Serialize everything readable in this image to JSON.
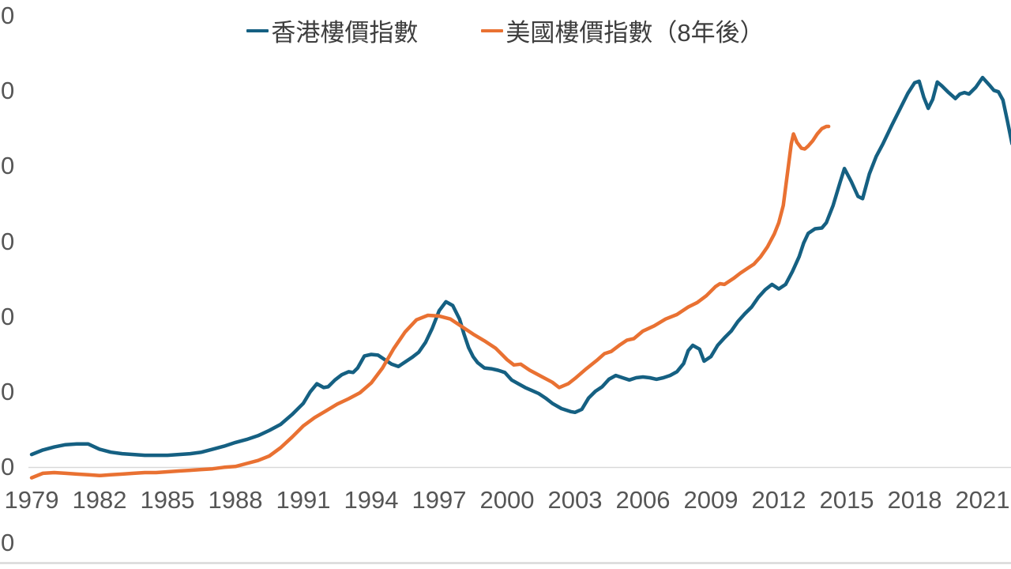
{
  "colors": {
    "hk_series": "#156082",
    "us_series": "#E97132",
    "axis_line": "#D9D9D9",
    "bottom_rule": "#D9D9D9",
    "tick_text": "#565656",
    "legend_text": "#3E3E3E",
    "background": "#FFFFFF"
  },
  "legend": {
    "items": [
      {
        "label": "香港樓價指數",
        "color": "#156082",
        "icon": "line-dash-icon"
      },
      {
        "label": "美國樓價指數（8年後）",
        "color": "#E97132",
        "icon": "line-dash-icon"
      }
    ]
  },
  "x_axis": {
    "tick_labels": [
      "1979",
      "1982",
      "1985",
      "1988",
      "1991",
      "1994",
      "1997",
      "2000",
      "2003",
      "2006",
      "2009",
      "2012",
      "2015",
      "2018",
      "2021"
    ],
    "tick_years": [
      1979,
      1982,
      1985,
      1988,
      1991,
      1994,
      1997,
      2000,
      2003,
      2006,
      2009,
      2012,
      2015,
      2018,
      2021
    ]
  },
  "y_axis": {
    "tick_display_text": "0",
    "visible_tick_count": 8,
    "note": "labels cropped at left edge of image; only trailing zero of each label is visible"
  },
  "chart_data": {
    "type": "line",
    "title": "",
    "legend_position": "top-center",
    "grid": "off",
    "x_axis": {
      "tick_labels": [
        1979,
        1982,
        1985,
        1988,
        1991,
        1994,
        1997,
        2000,
        2003,
        2006,
        2009,
        2012,
        2015,
        2018,
        2021
      ],
      "range": [
        1979,
        2022.3
      ]
    },
    "y_axis": {
      "ticks_estimated": [
        0,
        100,
        200,
        300,
        400,
        500,
        600,
        700
      ],
      "range": [
        0,
        700
      ],
      "visible_tick_text": "0"
    },
    "axis_crossing_line_value": 100,
    "series": [
      {
        "name": "香港樓價指數",
        "color": "#156082",
        "points": [
          [
            1979,
            117
          ],
          [
            1979.5,
            123
          ],
          [
            1980,
            127
          ],
          [
            1980.5,
            130
          ],
          [
            1981,
            131
          ],
          [
            1981.5,
            131
          ],
          [
            1982,
            124
          ],
          [
            1982.5,
            120
          ],
          [
            1983,
            118
          ],
          [
            1983.5,
            117
          ],
          [
            1984,
            116
          ],
          [
            1984.5,
            116
          ],
          [
            1985,
            116
          ],
          [
            1985.5,
            117
          ],
          [
            1986,
            118
          ],
          [
            1986.5,
            120
          ],
          [
            1987,
            124
          ],
          [
            1987.5,
            128
          ],
          [
            1988,
            133
          ],
          [
            1988.5,
            137
          ],
          [
            1989,
            142
          ],
          [
            1989.5,
            149
          ],
          [
            1990,
            157
          ],
          [
            1990.5,
            170
          ],
          [
            1991,
            185
          ],
          [
            1991.3,
            200
          ],
          [
            1991.6,
            211
          ],
          [
            1991.9,
            206
          ],
          [
            1992.1,
            207
          ],
          [
            1992.4,
            216
          ],
          [
            1992.7,
            223
          ],
          [
            1993,
            227
          ],
          [
            1993.2,
            226
          ],
          [
            1993.4,
            232
          ],
          [
            1993.7,
            248
          ],
          [
            1994,
            250
          ],
          [
            1994.3,
            249
          ],
          [
            1994.6,
            243
          ],
          [
            1994.9,
            237
          ],
          [
            1995.2,
            234
          ],
          [
            1995.5,
            240
          ],
          [
            1995.8,
            246
          ],
          [
            1996.1,
            253
          ],
          [
            1996.4,
            266
          ],
          [
            1996.7,
            285
          ],
          [
            1997,
            308
          ],
          [
            1997.3,
            320
          ],
          [
            1997.6,
            315
          ],
          [
            1997.9,
            297
          ],
          [
            1998.1,
            277
          ],
          [
            1998.3,
            259
          ],
          [
            1998.5,
            247
          ],
          [
            1998.7,
            239
          ],
          [
            1999,
            232
          ],
          [
            1999.3,
            231
          ],
          [
            1999.6,
            229
          ],
          [
            1999.9,
            226
          ],
          [
            2000.2,
            216
          ],
          [
            2000.5,
            211
          ],
          [
            2000.8,
            206
          ],
          [
            2001.1,
            202
          ],
          [
            2001.4,
            198
          ],
          [
            2001.7,
            192
          ],
          [
            2002,
            185
          ],
          [
            2002.4,
            178
          ],
          [
            2002.8,
            174
          ],
          [
            2003,
            173
          ],
          [
            2003.3,
            177
          ],
          [
            2003.6,
            192
          ],
          [
            2003.9,
            201
          ],
          [
            2004.2,
            207
          ],
          [
            2004.5,
            217
          ],
          [
            2004.8,
            222
          ],
          [
            2005.1,
            219
          ],
          [
            2005.4,
            216
          ],
          [
            2005.7,
            219
          ],
          [
            2006,
            220
          ],
          [
            2006.3,
            219
          ],
          [
            2006.6,
            217
          ],
          [
            2006.9,
            219
          ],
          [
            2007.2,
            222
          ],
          [
            2007.5,
            227
          ],
          [
            2007.8,
            238
          ],
          [
            2008,
            255
          ],
          [
            2008.2,
            262
          ],
          [
            2008.5,
            257
          ],
          [
            2008.7,
            241
          ],
          [
            2009,
            247
          ],
          [
            2009.3,
            262
          ],
          [
            2009.6,
            272
          ],
          [
            2009.9,
            281
          ],
          [
            2010.2,
            294
          ],
          [
            2010.5,
            304
          ],
          [
            2010.8,
            313
          ],
          [
            2011.1,
            326
          ],
          [
            2011.4,
            336
          ],
          [
            2011.7,
            343
          ],
          [
            2012,
            337
          ],
          [
            2012.3,
            343
          ],
          [
            2012.6,
            360
          ],
          [
            2012.9,
            380
          ],
          [
            2013.1,
            398
          ],
          [
            2013.3,
            411
          ],
          [
            2013.6,
            417
          ],
          [
            2013.9,
            418
          ],
          [
            2014.1,
            425
          ],
          [
            2014.4,
            448
          ],
          [
            2014.7,
            478
          ],
          [
            2014.9,
            497
          ],
          [
            2015.2,
            480
          ],
          [
            2015.5,
            460
          ],
          [
            2015.7,
            457
          ],
          [
            2016,
            490
          ],
          [
            2016.3,
            513
          ],
          [
            2016.6,
            530
          ],
          [
            2017,
            555
          ],
          [
            2017.4,
            579
          ],
          [
            2017.7,
            597
          ],
          [
            2018,
            611
          ],
          [
            2018.2,
            613
          ],
          [
            2018.4,
            592
          ],
          [
            2018.6,
            577
          ],
          [
            2018.8,
            589
          ],
          [
            2019,
            612
          ],
          [
            2019.2,
            607
          ],
          [
            2019.5,
            598
          ],
          [
            2019.8,
            590
          ],
          [
            2020,
            596
          ],
          [
            2020.2,
            598
          ],
          [
            2020.4,
            596
          ],
          [
            2020.7,
            605
          ],
          [
            2021,
            618
          ],
          [
            2021.3,
            608
          ],
          [
            2021.5,
            601
          ],
          [
            2021.7,
            599
          ],
          [
            2021.9,
            588
          ],
          [
            2022.1,
            560
          ],
          [
            2022.3,
            530
          ]
        ]
      },
      {
        "name": "美國樓價指數（8年後）",
        "color": "#E97132",
        "points": [
          [
            1979,
            86
          ],
          [
            1979.5,
            92
          ],
          [
            1980,
            93
          ],
          [
            1980.5,
            92
          ],
          [
            1981,
            91
          ],
          [
            1981.5,
            90
          ],
          [
            1982,
            89
          ],
          [
            1982.5,
            90
          ],
          [
            1983,
            91
          ],
          [
            1983.5,
            92
          ],
          [
            1984,
            93
          ],
          [
            1984.5,
            93
          ],
          [
            1985,
            94
          ],
          [
            1985.5,
            95
          ],
          [
            1986,
            96
          ],
          [
            1986.5,
            97
          ],
          [
            1987,
            98
          ],
          [
            1987.5,
            100
          ],
          [
            1988,
            101
          ],
          [
            1988.5,
            105
          ],
          [
            1989,
            109
          ],
          [
            1989.5,
            115
          ],
          [
            1990,
            126
          ],
          [
            1990.5,
            140
          ],
          [
            1991,
            155
          ],
          [
            1991.5,
            166
          ],
          [
            1992,
            175
          ],
          [
            1992.5,
            184
          ],
          [
            1993,
            191
          ],
          [
            1993.5,
            199
          ],
          [
            1994,
            212
          ],
          [
            1994.5,
            232
          ],
          [
            1995,
            258
          ],
          [
            1995.5,
            280
          ],
          [
            1996,
            296
          ],
          [
            1996.5,
            302
          ],
          [
            1997,
            301
          ],
          [
            1997.5,
            297
          ],
          [
            1998,
            287
          ],
          [
            1998.5,
            277
          ],
          [
            1999,
            268
          ],
          [
            1999.5,
            258
          ],
          [
            2000,
            243
          ],
          [
            2000.3,
            236
          ],
          [
            2000.6,
            237
          ],
          [
            2001,
            229
          ],
          [
            2001.5,
            221
          ],
          [
            2002,
            213
          ],
          [
            2002.3,
            206
          ],
          [
            2002.7,
            211
          ],
          [
            2003,
            218
          ],
          [
            2003.5,
            231
          ],
          [
            2004,
            243
          ],
          [
            2004.3,
            251
          ],
          [
            2004.6,
            254
          ],
          [
            2005,
            263
          ],
          [
            2005.3,
            269
          ],
          [
            2005.6,
            271
          ],
          [
            2006,
            281
          ],
          [
            2006.5,
            288
          ],
          [
            2007,
            297
          ],
          [
            2007.5,
            303
          ],
          [
            2008,
            313
          ],
          [
            2008.4,
            319
          ],
          [
            2008.8,
            328
          ],
          [
            2009.2,
            340
          ],
          [
            2009.4,
            344
          ],
          [
            2009.6,
            343
          ],
          [
            2010,
            351
          ],
          [
            2010.3,
            358
          ],
          [
            2010.6,
            364
          ],
          [
            2010.9,
            370
          ],
          [
            2011.2,
            380
          ],
          [
            2011.5,
            393
          ],
          [
            2011.8,
            410
          ],
          [
            2012,
            425
          ],
          [
            2012.2,
            448
          ],
          [
            2012.4,
            495
          ],
          [
            2012.55,
            530
          ],
          [
            2012.65,
            543
          ],
          [
            2012.8,
            532
          ],
          [
            2013,
            524
          ],
          [
            2013.15,
            523
          ],
          [
            2013.3,
            527
          ],
          [
            2013.5,
            534
          ],
          [
            2013.7,
            543
          ],
          [
            2013.9,
            550
          ],
          [
            2014.1,
            553
          ],
          [
            2014.2,
            553
          ]
        ]
      }
    ]
  }
}
